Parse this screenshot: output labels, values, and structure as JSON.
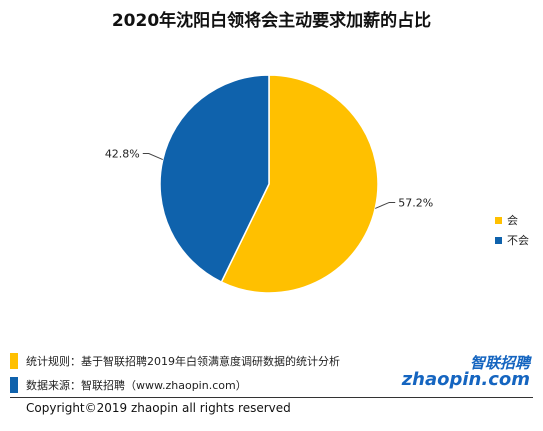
{
  "chart_data": {
    "type": "pie",
    "title": "2020年沈阳白领将会主动要求加薪的占比",
    "slices": [
      {
        "label": "会",
        "value": 57.2,
        "display": "57.2%",
        "color": "#FFC000"
      },
      {
        "label": "不会",
        "value": 42.8,
        "display": "42.8%",
        "color": "#0F62AC"
      }
    ],
    "legend_position": "right"
  },
  "notes": {
    "method": "统计规则：基于智联招聘2019年白领满意度调研数据的统计分析",
    "method_color": "#FFC000",
    "source": "数据来源：智联招聘（www.zhaopin.com）",
    "source_color": "#0F62AC"
  },
  "footer": {
    "copyright": "Copyright©2019 zhaopin all rights reserved"
  },
  "logo": {
    "chinese": "智联招聘",
    "english": "zhaopin.com",
    "color": "#1565C0"
  }
}
